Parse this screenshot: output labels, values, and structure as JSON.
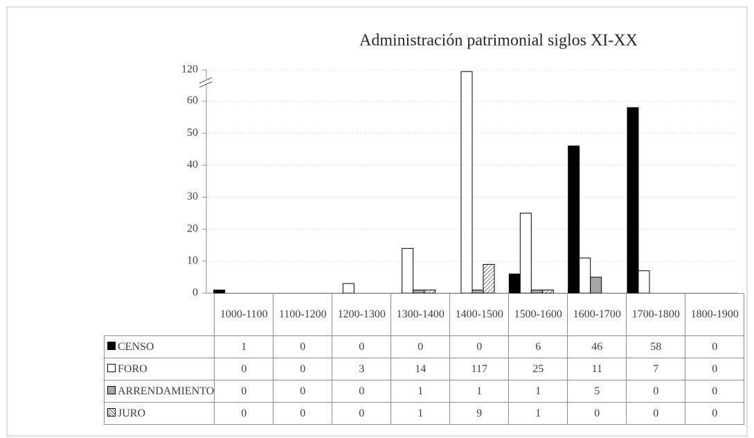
{
  "chart_data": {
    "type": "bar",
    "title": "Administración patrimonial siglos XI-XX",
    "categories": [
      "1000-1100",
      "1100-1200",
      "1200-1300",
      "1300-1400",
      "1400-1500",
      "1500-1600",
      "1600-1700",
      "1700-1800",
      "1800-1900"
    ],
    "series": [
      {
        "name": "CENSO",
        "color": "#000000",
        "values": [
          1,
          0,
          0,
          0,
          0,
          6,
          46,
          58,
          0
        ]
      },
      {
        "name": "FORO",
        "color": "#ffffff",
        "values": [
          0,
          0,
          3,
          14,
          117,
          25,
          11,
          7,
          0
        ]
      },
      {
        "name": "ARRENDAMIENTO",
        "color": "#a6a6a6",
        "values": [
          0,
          0,
          0,
          1,
          1,
          1,
          5,
          0,
          0
        ]
      },
      {
        "name": "JURO",
        "color": "#ffffff",
        "hatch": true,
        "values": [
          0,
          0,
          0,
          1,
          9,
          1,
          0,
          0,
          0
        ]
      }
    ],
    "ylim": [
      0,
      120
    ],
    "yticks": [
      0,
      10,
      20,
      30,
      40,
      50,
      60,
      120
    ],
    "axis_break": [
      60,
      120
    ],
    "grid": true,
    "data_table": true
  }
}
